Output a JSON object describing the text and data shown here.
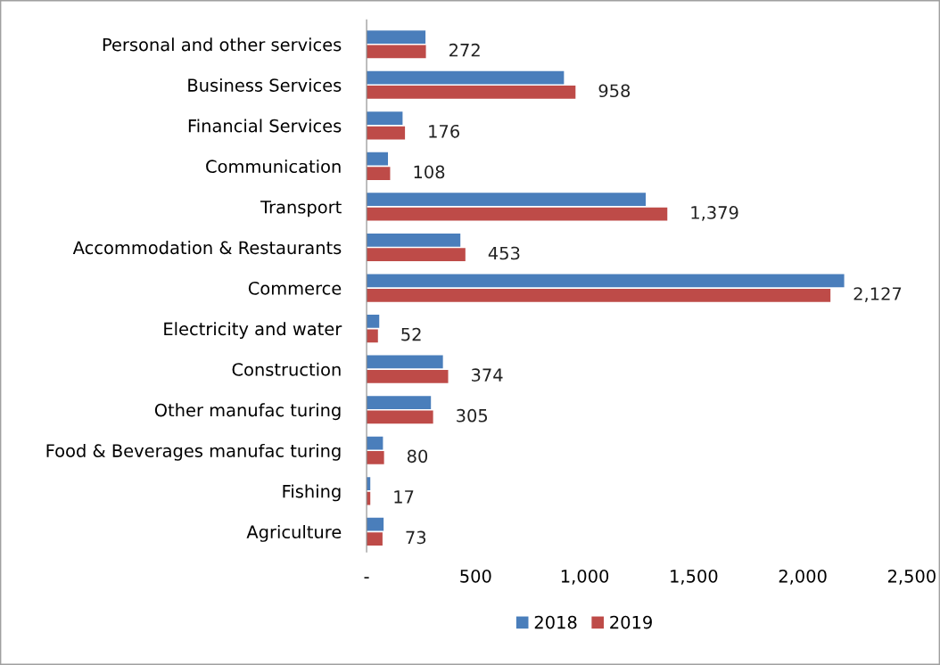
{
  "chart_data": {
    "type": "bar",
    "orientation": "horizontal",
    "categories": [
      "Personal and other services",
      "Business Services",
      "Financial Services",
      "Communication",
      "Transport",
      "Accommodation & Restaurants",
      "Commerce",
      "Electricity and water",
      "Construction",
      "Other manufac turing",
      "Food & Beverages manufac turing",
      "Fishing",
      "Agriculture"
    ],
    "series": [
      {
        "name": "2018",
        "color": "#4a7ebb",
        "values": [
          270,
          905,
          165,
          98,
          1280,
          430,
          2190,
          58,
          350,
          295,
          75,
          17,
          78
        ]
      },
      {
        "name": "2019",
        "color": "#be4b48",
        "values": [
          272,
          958,
          176,
          108,
          1379,
          453,
          2127,
          52,
          374,
          305,
          80,
          17,
          73
        ],
        "value_labels": [
          "272",
          "958",
          "176",
          "108",
          "1,379",
          "453",
          "2,127",
          "52",
          "374",
          "305",
          "80",
          "17",
          "73"
        ]
      }
    ],
    "xlim": [
      0,
      2500
    ],
    "xticks": [
      {
        "value": 0,
        "label": "-"
      },
      {
        "value": 500,
        "label": "500"
      },
      {
        "value": 1000,
        "label": "1,000"
      },
      {
        "value": 1500,
        "label": "1,500"
      },
      {
        "value": 2000,
        "label": "2,000"
      },
      {
        "value": 2500,
        "label": "2,500"
      }
    ],
    "grid": false,
    "legend": "bottom"
  }
}
